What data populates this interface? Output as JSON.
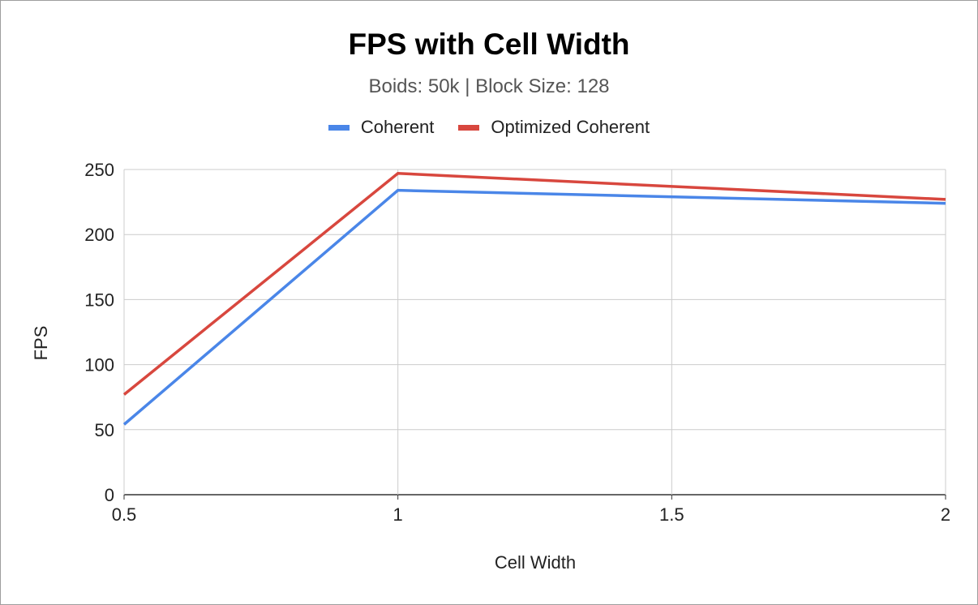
{
  "chart_data": {
    "type": "line",
    "title": "FPS with Cell Width",
    "subtitle": "Boids: 50k | Block Size: 128",
    "xlabel": "Cell Width",
    "ylabel": "FPS",
    "x": [
      0.5,
      1,
      2
    ],
    "xlim": [
      0.5,
      2
    ],
    "ylim": [
      0,
      250
    ],
    "xticks": [
      "0.5",
      "1",
      "1.5",
      "2"
    ],
    "yticks": [
      "0",
      "50",
      "100",
      "150",
      "200",
      "250"
    ],
    "grid": true,
    "legend_position": "top",
    "series": [
      {
        "name": "Coherent",
        "values": [
          54,
          234,
          224
        ],
        "color": "#4a86e8"
      },
      {
        "name": "Optimized Coherent",
        "values": [
          77,
          247,
          227
        ],
        "color": "#d8473e"
      }
    ]
  }
}
